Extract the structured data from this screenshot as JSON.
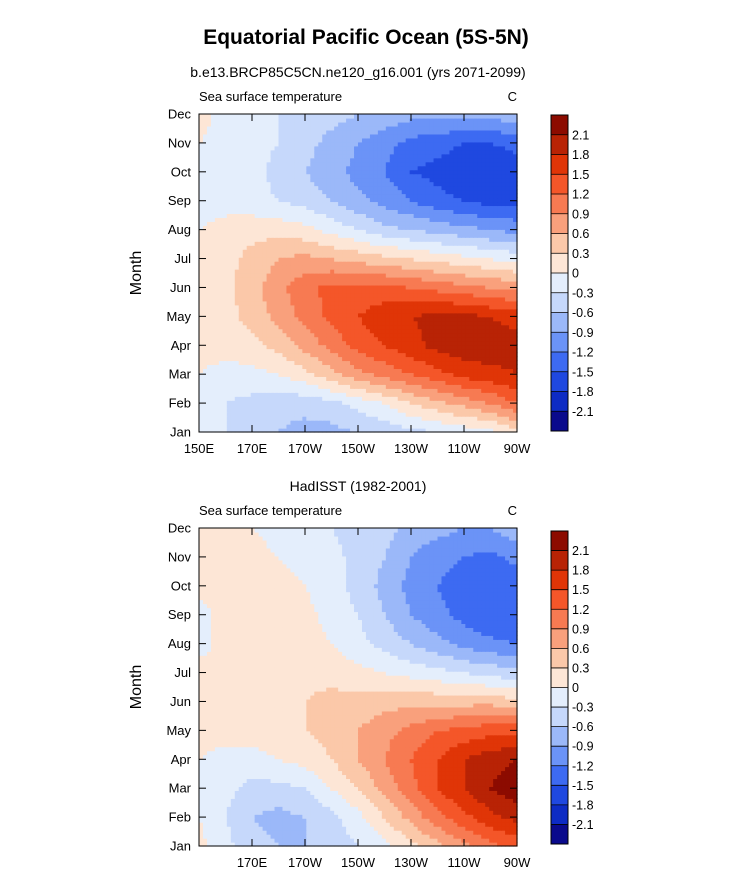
{
  "figure": {
    "title": "Equatorial Pacific Ocean (5S-5N)"
  },
  "colors": {
    "levels": [
      "#0a0a8c",
      "#0d2bc4",
      "#1f48e0",
      "#3d6af2",
      "#6b93f7",
      "#9bb8f9",
      "#c6d8fb",
      "#e4eefc",
      "#fde6d6",
      "#fbc8a9",
      "#f9a07c",
      "#f77a52",
      "#f45629",
      "#e03507",
      "#b82305",
      "#8c0b00"
    ]
  },
  "chart_data": [
    {
      "type": "heatmap",
      "title": "b.e13.BRCP85C5CN.ne120_g16.001 (yrs 2071-2099)",
      "left_label": "Sea surface temperature",
      "right_label": "C",
      "ylabel": "Month",
      "xlim": [
        150,
        270
      ],
      "x_ticks": [
        150,
        170,
        190,
        210,
        230,
        250,
        270
      ],
      "x_tick_labels": [
        "150E",
        "170E",
        "170W",
        "150W",
        "130W",
        "110W",
        "90W"
      ],
      "y_tick_labels": [
        "Jan",
        "Feb",
        "Mar",
        "Apr",
        "May",
        "Jun",
        "Jul",
        "Aug",
        "Sep",
        "Oct",
        "Nov",
        "Dec"
      ],
      "colorbar": {
        "levels": [
          -2.1,
          -1.8,
          -1.5,
          -1.2,
          -0.9,
          -0.6,
          -0.3,
          0,
          0.3,
          0.6,
          0.9,
          1.2,
          1.5,
          1.8,
          2.1
        ],
        "labels": [
          "-2.1",
          "-1.8",
          "-1.5",
          "-1.2",
          "-0.9",
          "-0.6",
          "-0.3",
          "0",
          "0.3",
          "0.6",
          "0.9",
          "1.2",
          "1.5",
          "1.8",
          "2.1"
        ]
      },
      "field": {
        "grid_lon": [
          150,
          160,
          170,
          180,
          190,
          200,
          210,
          220,
          230,
          240,
          250,
          260,
          270
        ],
        "values": [
          [
            -0.1,
            -0.3,
            -0.5,
            -0.6,
            -0.7,
            -0.7,
            -0.6,
            -0.5,
            -0.4,
            -0.3,
            -0.2,
            -0.1,
            0.2
          ],
          [
            -0.1,
            -0.3,
            -0.4,
            -0.5,
            -0.5,
            -0.4,
            -0.2,
            0.0,
            0.3,
            0.5,
            0.7,
            0.9,
            1.2
          ],
          [
            0.0,
            -0.1,
            -0.1,
            0.0,
            0.2,
            0.5,
            0.8,
            1.0,
            1.2,
            1.4,
            1.6,
            1.7,
            1.8
          ],
          [
            0.1,
            0.1,
            0.2,
            0.4,
            0.7,
            1.0,
            1.3,
            1.5,
            1.7,
            1.9,
            2.0,
            2.0,
            1.9
          ],
          [
            0.1,
            0.2,
            0.4,
            0.7,
            1.0,
            1.3,
            1.5,
            1.7,
            1.8,
            1.9,
            1.9,
            1.8,
            1.7
          ],
          [
            0.1,
            0.2,
            0.5,
            0.8,
            1.1,
            1.3,
            1.3,
            1.3,
            1.2,
            1.1,
            1.0,
            0.9,
            0.8
          ],
          [
            0.1,
            0.2,
            0.4,
            0.6,
            0.7,
            0.6,
            0.5,
            0.4,
            0.3,
            0.2,
            0.1,
            0.0,
            -0.1
          ],
          [
            0.0,
            0.1,
            0.2,
            0.2,
            0.1,
            -0.1,
            -0.3,
            -0.5,
            -0.6,
            -0.7,
            -0.8,
            -0.9,
            -1.0
          ],
          [
            -0.1,
            -0.1,
            -0.2,
            -0.3,
            -0.4,
            -0.6,
            -0.8,
            -1.0,
            -1.2,
            -1.4,
            -1.5,
            -1.6,
            -1.6
          ],
          [
            0.0,
            -0.1,
            -0.2,
            -0.4,
            -0.6,
            -0.8,
            -1.0,
            -1.2,
            -1.5,
            -1.6,
            -1.7,
            -1.8,
            -1.7
          ],
          [
            0.0,
            -0.1,
            -0.2,
            -0.3,
            -0.5,
            -0.7,
            -0.9,
            -1.1,
            -1.3,
            -1.4,
            -1.5,
            -1.5,
            -1.4
          ],
          [
            0.1,
            -0.1,
            -0.2,
            -0.3,
            -0.4,
            -0.5,
            -0.6,
            -0.7,
            -0.8,
            -0.8,
            -0.8,
            -0.8,
            -0.7
          ]
        ]
      }
    },
    {
      "type": "heatmap",
      "title": "HadISST (1982-2001)",
      "left_label": "Sea surface temperature",
      "right_label": "C",
      "ylabel": "Month",
      "xlim": [
        150,
        270
      ],
      "x_ticks": [
        170,
        190,
        210,
        230,
        250,
        270
      ],
      "x_tick_labels": [
        "170E",
        "170W",
        "150W",
        "130W",
        "110W",
        "90W"
      ],
      "y_tick_labels": [
        "Jan",
        "Feb",
        "Mar",
        "Apr",
        "May",
        "Jun",
        "Jul",
        "Aug",
        "Sep",
        "Oct",
        "Nov",
        "Dec"
      ],
      "colorbar": {
        "levels": [
          -2.1,
          -1.8,
          -1.5,
          -1.2,
          -0.9,
          -0.6,
          -0.3,
          0,
          0.3,
          0.6,
          0.9,
          1.2,
          1.5,
          1.8,
          2.1
        ],
        "labels": [
          "-2.1",
          "-1.8",
          "-1.5",
          "-1.2",
          "-0.9",
          "-0.6",
          "-0.3",
          "0",
          "0.3",
          "0.6",
          "0.9",
          "1.2",
          "1.5",
          "1.8",
          "2.1"
        ]
      },
      "field": {
        "grid_lon": [
          150,
          160,
          170,
          180,
          190,
          200,
          210,
          220,
          230,
          240,
          250,
          260,
          270
        ],
        "values": [
          [
            0.1,
            -0.2,
            -0.5,
            -0.6,
            -0.6,
            -0.5,
            -0.3,
            -0.1,
            0.2,
            0.5,
            0.8,
            1.1,
            1.3
          ],
          [
            0.0,
            -0.3,
            -0.6,
            -0.7,
            -0.6,
            -0.4,
            -0.1,
            0.3,
            0.7,
            1.1,
            1.4,
            1.7,
            1.9
          ],
          [
            0.0,
            -0.2,
            -0.4,
            -0.4,
            -0.3,
            0.0,
            0.3,
            0.7,
            1.1,
            1.5,
            1.8,
            2.1,
            2.3
          ],
          [
            0.0,
            -0.1,
            -0.1,
            0.0,
            0.1,
            0.3,
            0.6,
            0.9,
            1.2,
            1.5,
            1.8,
            2.0,
            2.1
          ],
          [
            0.1,
            0.1,
            0.1,
            0.2,
            0.3,
            0.4,
            0.6,
            0.8,
            1.0,
            1.2,
            1.3,
            1.4,
            1.4
          ],
          [
            0.1,
            0.1,
            0.2,
            0.2,
            0.3,
            0.4,
            0.4,
            0.5,
            0.5,
            0.5,
            0.5,
            0.5,
            0.4
          ],
          [
            0.1,
            0.1,
            0.2,
            0.2,
            0.2,
            0.2,
            0.1,
            0.0,
            -0.1,
            -0.2,
            -0.3,
            -0.4,
            -0.5
          ],
          [
            -0.1,
            0.1,
            0.2,
            0.2,
            0.1,
            0.0,
            -0.2,
            -0.4,
            -0.6,
            -0.8,
            -1.0,
            -1.1,
            -1.2
          ],
          [
            -0.1,
            0.1,
            0.3,
            0.2,
            0.1,
            -0.1,
            -0.3,
            -0.6,
            -0.9,
            -1.1,
            -1.3,
            -1.5,
            -1.5
          ],
          [
            0.1,
            0.1,
            0.2,
            0.1,
            0.0,
            -0.2,
            -0.4,
            -0.7,
            -1.0,
            -1.2,
            -1.4,
            -1.5,
            -1.4
          ],
          [
            0.1,
            0.1,
            0.1,
            0.0,
            -0.1,
            -0.2,
            -0.4,
            -0.6,
            -0.9,
            -1.1,
            -1.2,
            -1.3,
            -1.1
          ],
          [
            0.1,
            0.1,
            0.0,
            -0.1,
            -0.2,
            -0.3,
            -0.4,
            -0.5,
            -0.7,
            -0.8,
            -0.9,
            -0.9,
            -0.7
          ]
        ]
      }
    }
  ]
}
